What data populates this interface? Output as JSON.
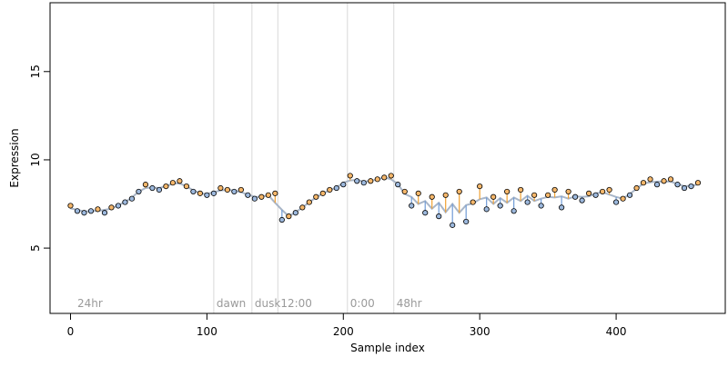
{
  "chart_data": {
    "type": "scatter",
    "title": "",
    "xlabel": "Sample index",
    "ylabel": "Expression",
    "xlim": [
      -15,
      480
    ],
    "ylim": [
      1.3,
      18.9
    ],
    "x_ticks": [
      0,
      100,
      200,
      300,
      400
    ],
    "y_ticks": [
      5,
      10,
      15
    ],
    "grid": false,
    "legend": "none",
    "colors": {
      "point_fill_orange": "#f5b76b",
      "point_fill_blue": "#9cb8dd",
      "point_outline": "#000000",
      "segment_orange": "#f0a030",
      "segment_blue": "#6f9bd6",
      "fit_line": "#a9b6c8",
      "vline": "#d9d9d9",
      "region_label": "#9a9a9a"
    },
    "region_markers": [
      {
        "x": 105,
        "label": "dawn"
      },
      {
        "x": 133,
        "label": "dusk"
      },
      {
        "x": 152,
        "label": "12:00"
      },
      {
        "x": 203,
        "label": "0:00"
      },
      {
        "x": 237,
        "label": "48hr"
      }
    ],
    "region_start_label": {
      "x": 3,
      "label": "24hr"
    },
    "series": [
      {
        "x": [
          0,
          5,
          10,
          15,
          20,
          25,
          30,
          35,
          40,
          45,
          50,
          55,
          60,
          65,
          70,
          75,
          80,
          85,
          90,
          95,
          100,
          105,
          110,
          115,
          120,
          125,
          130,
          135,
          140,
          145,
          150,
          155,
          160,
          165,
          170,
          175,
          180,
          185,
          190,
          195,
          200,
          205,
          210,
          215,
          220,
          225,
          230,
          235,
          240,
          245,
          250,
          255,
          260,
          265,
          270,
          275,
          280,
          285,
          290,
          295,
          300,
          305,
          310,
          315,
          320,
          325,
          330,
          335,
          340,
          345,
          350,
          355,
          360,
          365,
          370,
          375,
          380,
          385,
          390,
          395,
          400,
          405,
          410,
          415,
          420,
          425,
          430,
          435,
          440,
          445,
          450,
          455,
          460
        ],
        "y": [
          7.4,
          7.1,
          7.0,
          7.1,
          7.2,
          7.0,
          7.3,
          7.4,
          7.6,
          7.8,
          8.2,
          8.6,
          8.4,
          8.3,
          8.5,
          8.7,
          8.8,
          8.5,
          8.2,
          8.1,
          8.0,
          8.1,
          8.4,
          8.3,
          8.2,
          8.3,
          8.0,
          7.8,
          7.9,
          8.0,
          8.1,
          6.6,
          6.8,
          7.0,
          7.3,
          7.6,
          7.9,
          8.1,
          8.3,
          8.4,
          8.6,
          9.1,
          8.8,
          8.7,
          8.8,
          8.9,
          9.0,
          9.1,
          8.6,
          8.2,
          7.4,
          8.1,
          7.0,
          7.9,
          6.8,
          8.0,
          6.3,
          8.2,
          6.5,
          7.6,
          8.5,
          7.2,
          7.9,
          7.4,
          8.2,
          7.1,
          8.3,
          7.6,
          8.0,
          7.4,
          8.0,
          8.3,
          7.3,
          8.2,
          7.9,
          7.7,
          8.1,
          8.0,
          8.2,
          8.3,
          7.6,
          7.8,
          8.0,
          8.4,
          8.7,
          8.9,
          8.6,
          8.8,
          8.9,
          8.6,
          8.4,
          8.5,
          8.7
        ]
      }
    ]
  }
}
